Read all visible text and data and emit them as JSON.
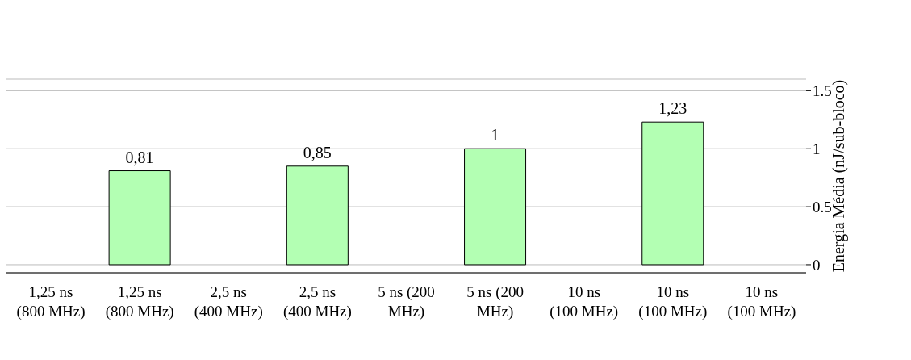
{
  "chart_data": {
    "type": "bar",
    "categories": [
      "1,25 ns (800 MHz)",
      "1,25 ns (800 MHz)",
      "2,5 ns (400 MHz)",
      "2,5 ns (400 MHz)",
      "5 ns (200 MHz)",
      "5 ns (200 MHz)",
      "10 ns (100 MHz)",
      "10 ns (100 MHz)",
      "10 ns (100 MHz)"
    ],
    "values": [
      null,
      0.81,
      null,
      0.85,
      null,
      1,
      null,
      1.23,
      null
    ],
    "value_labels": [
      null,
      "0,81",
      null,
      "0,85",
      null,
      "1",
      null,
      "1,23",
      null
    ],
    "color": "#b3ffb3",
    "ylabel": "Energia Média (nJ/sub-bloco)",
    "ylim": [
      -0.07,
      1.6
    ],
    "yticks": [
      0,
      0.5,
      1,
      1.5
    ],
    "grid": "y"
  }
}
